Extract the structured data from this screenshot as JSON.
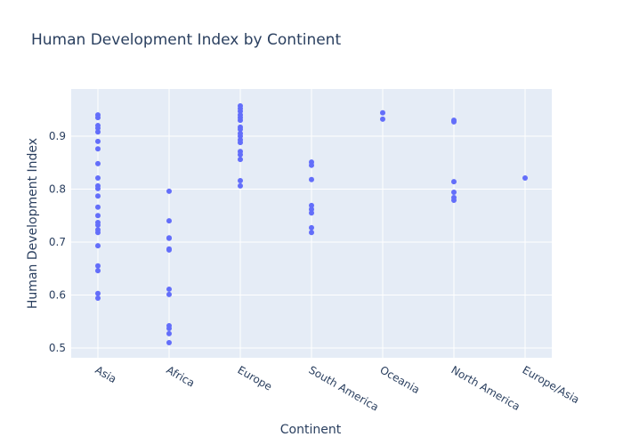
{
  "chart_data": {
    "type": "scatter",
    "title": "Human Development Index by Continent",
    "x_label": "Continent",
    "y_label": "Human Development Index",
    "categories": [
      "Asia",
      "Africa",
      "Europe",
      "South America",
      "Oceania",
      "North America",
      "Europe/Asia"
    ],
    "color": "#636efa",
    "grid": true,
    "ylim": [
      0.4815,
      0.989
    ],
    "yticks": [
      0.5,
      0.6,
      0.7,
      0.8,
      0.9
    ],
    "x": [
      "Asia",
      "Asia",
      "Asia",
      "Asia",
      "Asia",
      "Asia",
      "Asia",
      "Asia",
      "Asia",
      "Asia",
      "Asia",
      "Asia",
      "Asia",
      "Asia",
      "Asia",
      "Asia",
      "Asia",
      "Asia",
      "Asia",
      "Asia",
      "Asia",
      "Asia",
      "Asia",
      "Africa",
      "Africa",
      "Africa",
      "Africa",
      "Africa",
      "Africa",
      "Africa",
      "Africa",
      "Africa",
      "Africa",
      "Africa",
      "Africa",
      "Europe",
      "Europe",
      "Europe",
      "Europe",
      "Europe",
      "Europe",
      "Europe",
      "Europe",
      "Europe",
      "Europe",
      "Europe",
      "Europe",
      "Europe",
      "Europe",
      "Europe",
      "Europe",
      "Europe",
      "South America",
      "South America",
      "South America",
      "South America",
      "South America",
      "South America",
      "South America",
      "South America",
      "Oceania",
      "Oceania",
      "North America",
      "North America",
      "North America",
      "North America",
      "North America",
      "North America",
      "Europe/Asia"
    ],
    "y": [
      0.94,
      0.935,
      0.92,
      0.915,
      0.908,
      0.89,
      0.876,
      0.848,
      0.821,
      0.806,
      0.801,
      0.787,
      0.766,
      0.75,
      0.737,
      0.732,
      0.718,
      0.723,
      0.693,
      0.655,
      0.646,
      0.603,
      0.594,
      0.796,
      0.74,
      0.708,
      0.707,
      0.687,
      0.685,
      0.611,
      0.601,
      0.542,
      0.537,
      0.527,
      0.51,
      0.957,
      0.952,
      0.947,
      0.94,
      0.935,
      0.93,
      0.917,
      0.913,
      0.905,
      0.9,
      0.893,
      0.888,
      0.871,
      0.865,
      0.856,
      0.816,
      0.806,
      0.851,
      0.845,
      0.818,
      0.769,
      0.762,
      0.755,
      0.727,
      0.718,
      0.944,
      0.932,
      0.93,
      0.927,
      0.814,
      0.794,
      0.784,
      0.779,
      0.821
    ]
  }
}
